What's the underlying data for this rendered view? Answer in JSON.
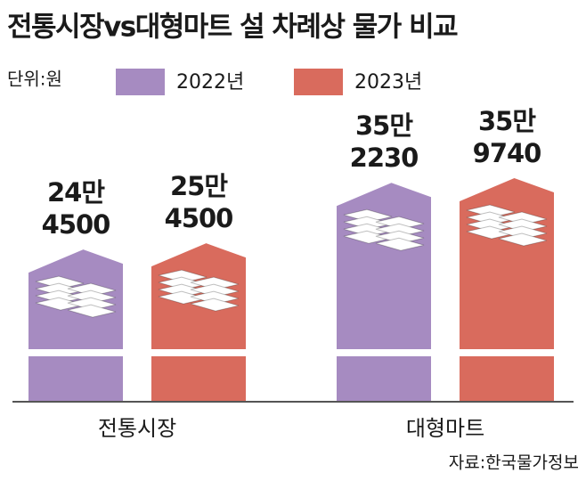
{
  "chart_data": {
    "type": "bar",
    "title": "전통시장vs대형마트 설 차례상 물가 비교",
    "unit_label": "단위:원",
    "source": "자료:한국물가정보",
    "categories": [
      "전통시장",
      "대형마트"
    ],
    "series": [
      {
        "name": "2022년",
        "color": "#a68bc1",
        "values": [
          244500,
          352230
        ],
        "value_labels": [
          [
            "24만",
            "4500"
          ],
          [
            "35만",
            "2230"
          ]
        ]
      },
      {
        "name": "2023년",
        "color": "#d96b5d",
        "values": [
          254500,
          359740
        ],
        "value_labels": [
          [
            "25만",
            "4500"
          ],
          [
            "35만",
            "9740"
          ]
        ]
      }
    ]
  }
}
